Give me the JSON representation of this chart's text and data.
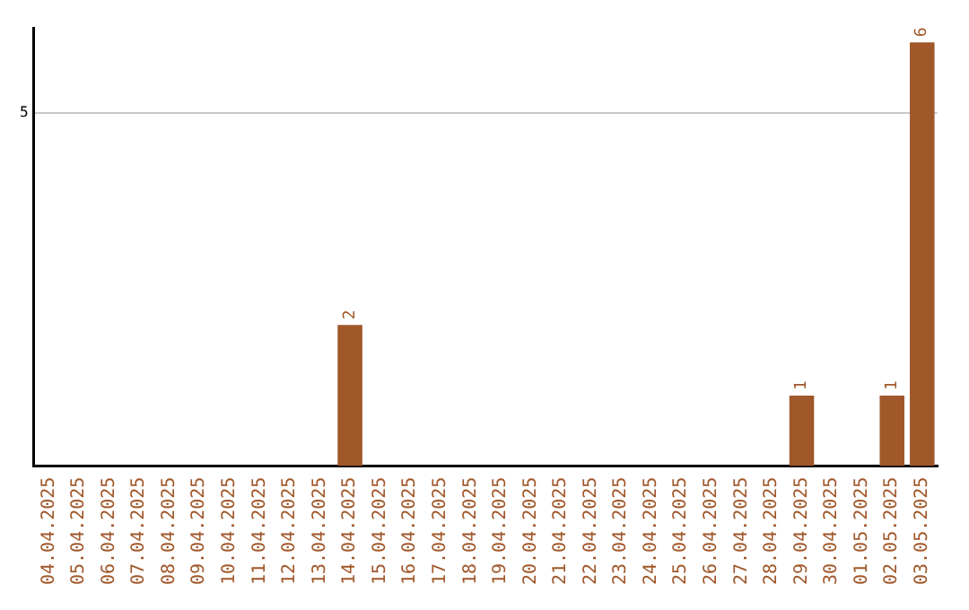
{
  "chart_data": {
    "type": "bar",
    "categories": [
      "04.04.2025",
      "05.04.2025",
      "06.04.2025",
      "07.04.2025",
      "08.04.2025",
      "09.04.2025",
      "10.04.2025",
      "11.04.2025",
      "12.04.2025",
      "13.04.2025",
      "14.04.2025",
      "15.04.2025",
      "16.04.2025",
      "17.04.2025",
      "18.04.2025",
      "19.04.2025",
      "20.04.2025",
      "21.04.2025",
      "22.04.2025",
      "23.04.2025",
      "24.04.2025",
      "25.04.2025",
      "26.04.2025",
      "27.04.2025",
      "28.04.2025",
      "29.04.2025",
      "30.04.2025",
      "01.05.2025",
      "02.05.2025",
      "03.05.2025"
    ],
    "values": [
      0,
      0,
      0,
      0,
      0,
      0,
      0,
      0,
      0,
      0,
      2,
      0,
      0,
      0,
      0,
      0,
      0,
      0,
      0,
      0,
      0,
      0,
      0,
      0,
      0,
      1,
      0,
      0,
      1,
      6
    ],
    "value_labels": [
      null,
      null,
      null,
      null,
      null,
      null,
      null,
      null,
      null,
      null,
      "2",
      null,
      null,
      null,
      null,
      null,
      null,
      null,
      null,
      null,
      null,
      null,
      null,
      null,
      null,
      "1",
      null,
      null,
      "1",
      "6"
    ],
    "color": "#a0572a",
    "ylim": [
      0,
      6.2
    ],
    "yticks": [
      5
    ],
    "grid": "y"
  }
}
